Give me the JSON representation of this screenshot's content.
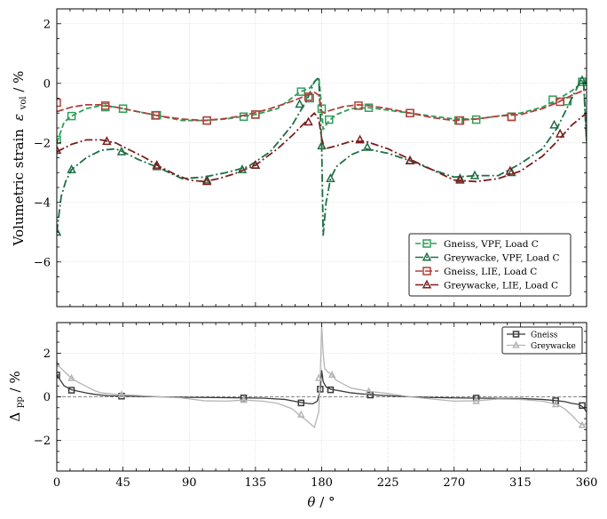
{
  "chart_data": [
    {
      "type": "line",
      "panel": "top",
      "ylabel": "Volumetric strain",
      "ylabel_symbol": "ε",
      "ylabel_sub": "vol",
      "ylabel_unit": " / %",
      "xlim": [
        0,
        360
      ],
      "ylim": [
        -7.5,
        2.5
      ],
      "x_ticks": [
        0,
        45,
        90,
        135,
        180,
        225,
        270,
        315,
        360
      ],
      "y_ticks": [
        -6,
        -4,
        -2,
        0,
        2
      ],
      "y_tick_labels": [
        "−6",
        "−4",
        "−2",
        "0",
        "2"
      ],
      "grid": true,
      "legend_position": "lower-right",
      "series": [
        {
          "name": "Gneiss, VPF, Load C",
          "color": "#2e9e5b",
          "dash": "6,3",
          "marker": "square",
          "x": [
            0,
            5,
            10,
            20,
            30,
            40,
            45,
            55,
            70,
            85,
            100,
            115,
            125,
            135,
            150,
            165,
            172,
            176,
            178,
            179,
            180,
            181,
            185,
            190,
            200,
            212,
            225,
            240,
            255,
            270,
            285,
            300,
            315,
            330,
            340,
            350,
            355,
            358,
            360
          ],
          "y": [
            -2.0,
            -1.3,
            -1.1,
            -0.85,
            -0.75,
            -0.8,
            -0.85,
            -0.95,
            -1.1,
            -1.25,
            -1.25,
            -1.2,
            -1.12,
            -1.05,
            -0.85,
            -0.3,
            -0.15,
            0.1,
            0.2,
            -0.3,
            -0.9,
            -1.55,
            -1.25,
            -1.05,
            -0.85,
            -0.82,
            -0.9,
            -1.0,
            -1.1,
            -1.2,
            -1.2,
            -1.1,
            -1.0,
            -0.8,
            -0.55,
            -0.25,
            -0.05,
            0.1,
            -2.0
          ],
          "markers_x": [
            0,
            10,
            33,
            45,
            68,
            102,
            127,
            135,
            166,
            172,
            180,
            185,
            212,
            240,
            273,
            285,
            309,
            337,
            347,
            357
          ],
          "markers_y": [
            -1.9,
            -1.1,
            -0.8,
            -0.85,
            -1.07,
            -1.25,
            -1.12,
            -1.05,
            -0.28,
            -0.5,
            -0.85,
            -1.22,
            -0.82,
            -1.0,
            -1.25,
            -1.22,
            -1.12,
            -0.55,
            -0.6,
            0.05
          ]
        },
        {
          "name": "Greywacke, VPF, Load C",
          "color": "#1e6e45",
          "dash": "9,3,2,3",
          "marker": "triangle",
          "x": [
            0,
            3,
            6,
            10,
            20,
            30,
            40,
            45,
            55,
            70,
            85,
            100,
            115,
            130,
            145,
            160,
            170,
            175,
            178,
            180,
            181,
            183,
            186,
            190,
            200,
            210,
            225,
            240,
            255,
            270,
            285,
            300,
            315,
            330,
            340,
            350,
            356,
            358,
            360
          ],
          "y": [
            -5.0,
            -3.8,
            -3.3,
            -2.9,
            -2.5,
            -2.25,
            -2.2,
            -2.3,
            -2.55,
            -2.85,
            -3.2,
            -3.15,
            -3.0,
            -2.8,
            -2.3,
            -1.4,
            -0.55,
            0.05,
            0.2,
            -2.1,
            -5.1,
            -4.0,
            -3.2,
            -2.8,
            -2.4,
            -2.2,
            -2.35,
            -2.6,
            -2.9,
            -3.15,
            -3.1,
            -3.1,
            -2.7,
            -2.2,
            -1.5,
            -0.5,
            0.1,
            0.0,
            -2.0
          ],
          "markers_x": [
            0,
            10,
            44,
            68,
            102,
            126,
            135,
            165,
            180,
            186,
            211,
            240,
            274,
            284,
            309,
            338,
            357
          ],
          "markers_y": [
            -5.0,
            -2.9,
            -2.3,
            -2.8,
            -3.25,
            -2.9,
            -2.75,
            -0.7,
            -2.1,
            -3.2,
            -2.15,
            -2.6,
            -3.2,
            -3.1,
            -3.0,
            -1.4,
            0.1
          ]
        },
        {
          "name": "Gneiss, LIE, Load C",
          "color": "#b0413a",
          "dash": "8,3",
          "marker": "square",
          "x": [
            0,
            10,
            20,
            30,
            40,
            45,
            55,
            70,
            85,
            100,
            115,
            130,
            145,
            160,
            170,
            175,
            178,
            180,
            182,
            185,
            195,
            205,
            212,
            225,
            240,
            255,
            270,
            285,
            300,
            315,
            330,
            340,
            350,
            360
          ],
          "y": [
            -0.95,
            -0.8,
            -0.72,
            -0.72,
            -0.8,
            -0.85,
            -0.95,
            -1.1,
            -1.2,
            -1.25,
            -1.18,
            -1.05,
            -0.85,
            -0.6,
            -0.4,
            -0.3,
            -0.4,
            -0.95,
            -1.0,
            -0.92,
            -0.78,
            -0.72,
            -0.75,
            -0.85,
            -1.0,
            -1.15,
            -1.25,
            -1.2,
            -1.1,
            -1.05,
            -0.85,
            -0.65,
            -0.4,
            -0.2
          ],
          "markers_x": [
            0,
            33,
            67,
            102,
            135,
            171,
            205,
            240,
            274,
            309,
            342
          ],
          "markers_y": [
            -0.65,
            -0.75,
            -1.08,
            -1.25,
            -1.05,
            -0.45,
            -0.75,
            -1.0,
            -1.25,
            -1.13,
            -0.62
          ]
        },
        {
          "name": "Greywacke, LIE, Load C",
          "color": "#7a1f1f",
          "dash": "9,3,2,3",
          "marker": "triangle",
          "x": [
            0,
            10,
            20,
            30,
            40,
            50,
            60,
            70,
            80,
            90,
            100,
            110,
            120,
            135,
            150,
            160,
            170,
            175,
            178,
            180,
            182,
            190,
            200,
            210,
            225,
            240,
            255,
            270,
            285,
            300,
            315,
            330,
            340,
            350,
            360
          ],
          "y": [
            -2.3,
            -2.05,
            -1.9,
            -1.9,
            -2.0,
            -2.25,
            -2.5,
            -2.8,
            -3.05,
            -3.25,
            -3.3,
            -3.2,
            -3.05,
            -2.75,
            -2.2,
            -1.75,
            -1.25,
            -1.0,
            -1.2,
            -1.85,
            -2.2,
            -2.1,
            -1.95,
            -1.95,
            -2.2,
            -2.55,
            -2.9,
            -3.25,
            -3.3,
            -3.2,
            -2.95,
            -2.45,
            -1.95,
            -1.4,
            -1.0
          ],
          "markers_x": [
            0,
            34,
            68,
            102,
            135,
            171,
            206,
            240,
            274,
            308,
            342
          ],
          "markers_y": [
            -2.25,
            -1.95,
            -2.75,
            -3.3,
            -2.75,
            -1.3,
            -1.9,
            -2.6,
            -3.25,
            -2.95,
            -1.7
          ]
        }
      ]
    },
    {
      "type": "line",
      "panel": "bottom",
      "xlabel": "θ",
      "xlabel_unit": " / °",
      "ylabel": "Δ",
      "ylabel_sub": "pp",
      "ylabel_unit": " / %",
      "xlim": [
        0,
        360
      ],
      "ylim": [
        -3.4,
        3.4
      ],
      "x_ticks": [
        0,
        45,
        90,
        135,
        180,
        225,
        270,
        315,
        360
      ],
      "y_ticks": [
        -2,
        0,
        2
      ],
      "y_tick_labels": [
        "−2",
        "0",
        "2"
      ],
      "reference_line": 0,
      "grid": true,
      "legend_position": "upper-right",
      "series": [
        {
          "name": "Gneiss",
          "color": "#3a3a3a",
          "marker": "square",
          "x": [
            0,
            2,
            5,
            10,
            15,
            20,
            25,
            30,
            35,
            40,
            45,
            55,
            70,
            85,
            100,
            115,
            127,
            140,
            155,
            165,
            170,
            174,
            177,
            179,
            180,
            181,
            183,
            186,
            190,
            200,
            212,
            225,
            240,
            255,
            270,
            285,
            300,
            315,
            330,
            340,
            345,
            350,
            355,
            358,
            360
          ],
          "y": [
            1.0,
            0.8,
            0.5,
            0.32,
            0.25,
            0.18,
            0.12,
            0.08,
            0.05,
            0.04,
            0.03,
            0.02,
            0.0,
            -0.02,
            -0.03,
            -0.04,
            -0.05,
            -0.06,
            -0.12,
            -0.25,
            -0.3,
            -0.32,
            -0.2,
            0.3,
            1.2,
            0.7,
            0.45,
            0.35,
            0.3,
            0.18,
            0.1,
            0.05,
            0.0,
            -0.03,
            -0.05,
            -0.06,
            -0.07,
            -0.08,
            -0.12,
            -0.18,
            -0.22,
            -0.3,
            -0.35,
            -0.5,
            -0.7
          ],
          "markers_x": [
            0,
            10,
            44,
            127,
            166,
            179,
            186,
            213,
            285,
            339,
            357
          ],
          "markers_y": [
            1.0,
            0.3,
            0.03,
            -0.05,
            -0.28,
            0.35,
            0.32,
            0.08,
            -0.06,
            -0.18,
            -0.4
          ]
        },
        {
          "name": "Greywacke",
          "color": "#b5b5b5",
          "marker": "triangle",
          "x": [
            0,
            3,
            6,
            10,
            15,
            20,
            25,
            30,
            35,
            40,
            45,
            55,
            70,
            85,
            100,
            115,
            127,
            140,
            150,
            160,
            165,
            170,
            175,
            178,
            179,
            180,
            181,
            182,
            184,
            187,
            190,
            200,
            212,
            225,
            240,
            255,
            270,
            285,
            300,
            315,
            330,
            340,
            345,
            350,
            355,
            358,
            360
          ],
          "y": [
            1.5,
            1.3,
            1.1,
            0.85,
            0.65,
            0.48,
            0.3,
            0.18,
            0.15,
            0.12,
            0.1,
            0.06,
            0.0,
            -0.05,
            -0.18,
            -0.2,
            -0.15,
            -0.2,
            -0.3,
            -0.55,
            -0.85,
            -1.1,
            -1.4,
            -0.7,
            0.9,
            3.3,
            2.0,
            1.3,
            1.15,
            1.0,
            0.75,
            0.4,
            0.25,
            0.15,
            0.0,
            -0.1,
            -0.2,
            -0.18,
            -0.1,
            -0.12,
            -0.2,
            -0.35,
            -0.55,
            -0.85,
            -1.2,
            -1.3,
            -1.2
          ],
          "markers_x": [
            0,
            10,
            44,
            127,
            166,
            178,
            187,
            212,
            285,
            339,
            357
          ],
          "markers_y": [
            1.5,
            0.85,
            0.1,
            -0.15,
            -0.82,
            0.85,
            1.0,
            0.25,
            -0.2,
            -0.35,
            -1.3
          ]
        }
      ]
    }
  ]
}
